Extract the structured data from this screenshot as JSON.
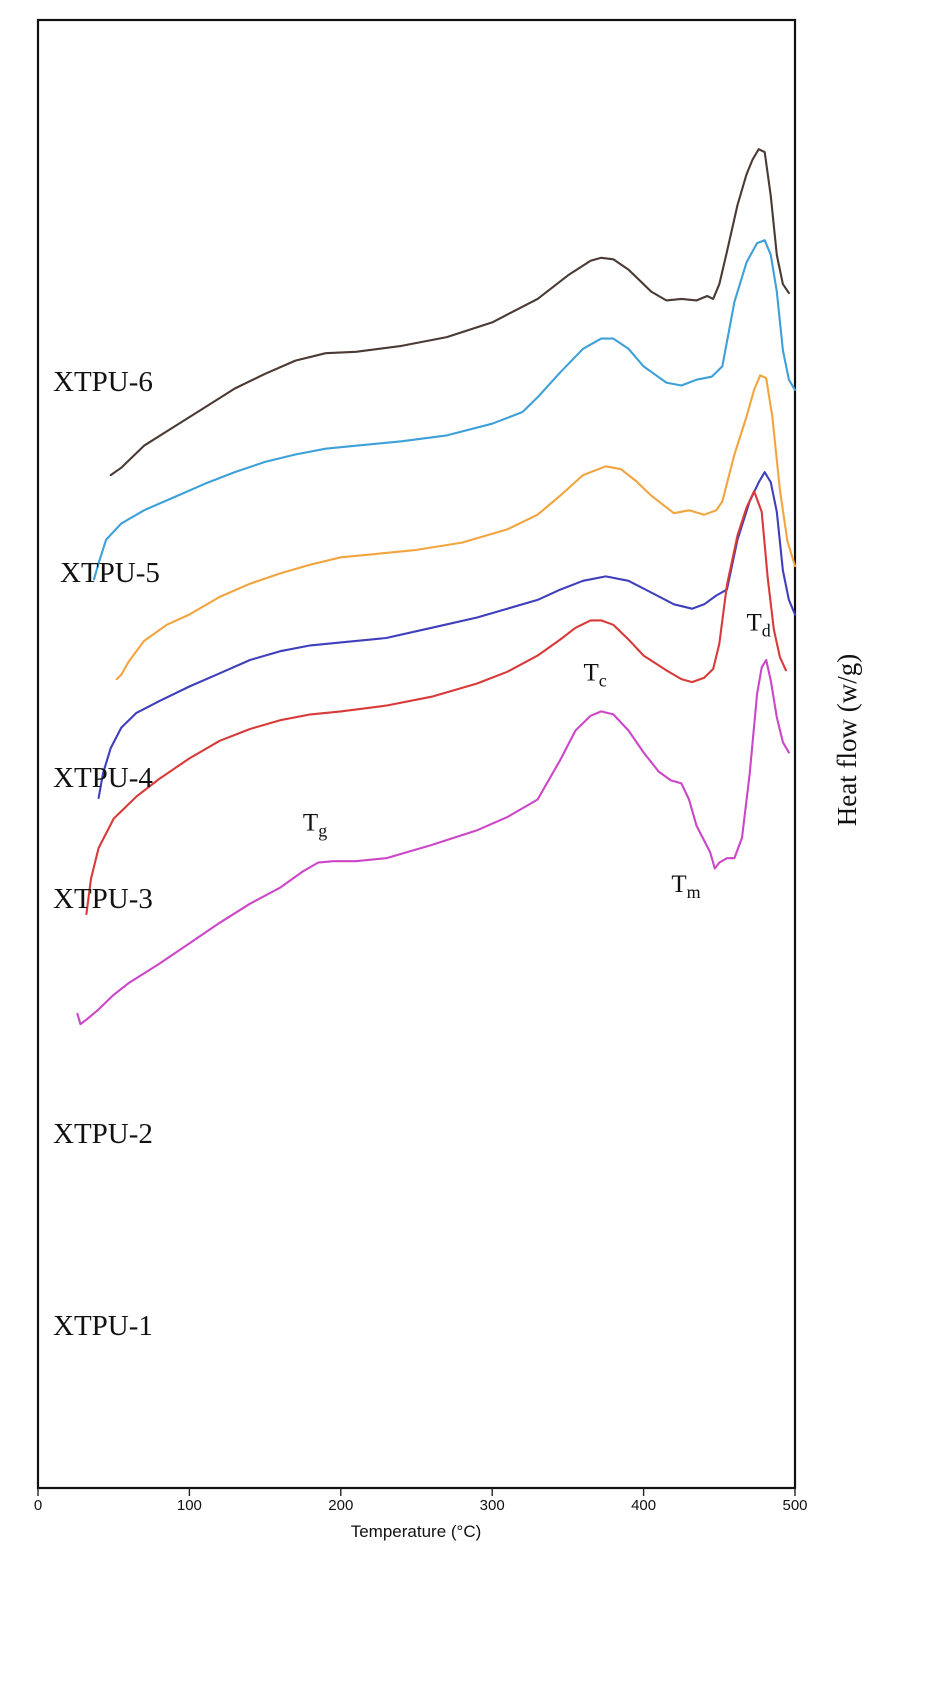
{
  "chart_data": {
    "type": "line",
    "title": "",
    "xlabel": "Temperature (°C)",
    "ylabel": "Heat flow (w/g)",
    "xlim": [
      0,
      500
    ],
    "ylim": [
      0,
      100
    ],
    "x_ticks": [
      0,
      100,
      200,
      300,
      400,
      500
    ],
    "grid": false,
    "series": [
      {
        "name": "XTPU-6",
        "color": "#4a3a33",
        "x": [
          48,
          55,
          70,
          90,
          110,
          130,
          150,
          170,
          190,
          210,
          240,
          270,
          300,
          330,
          350,
          365,
          372,
          380,
          390,
          405,
          415,
          425,
          435,
          442,
          446,
          450,
          455,
          462,
          468,
          472,
          476,
          480,
          484,
          488,
          492,
          496
        ],
        "y": [
          69.0,
          69.5,
          71.0,
          72.3,
          73.6,
          74.9,
          75.9,
          76.8,
          77.3,
          77.4,
          77.8,
          78.4,
          79.4,
          81.0,
          82.6,
          83.6,
          83.8,
          83.7,
          83.0,
          81.5,
          80.9,
          81.0,
          80.9,
          81.2,
          81.0,
          82.0,
          84.2,
          87.4,
          89.5,
          90.5,
          91.2,
          91.0,
          88.0,
          84.0,
          82.0,
          81.4
        ]
      },
      {
        "name": "XTPU-5",
        "color": "#3ea0d8",
        "x": [
          37,
          40,
          45,
          55,
          70,
          90,
          110,
          130,
          150,
          170,
          190,
          210,
          240,
          270,
          300,
          320,
          330,
          345,
          360,
          372,
          380,
          390,
          400,
          415,
          425,
          435,
          445,
          452,
          460,
          468,
          475,
          480,
          484,
          488,
          492,
          496,
          500
        ],
        "y": [
          61.9,
          63.0,
          64.6,
          65.7,
          66.6,
          67.5,
          68.4,
          69.2,
          69.9,
          70.4,
          70.8,
          71.0,
          71.3,
          71.7,
          72.5,
          73.3,
          74.3,
          76.0,
          77.6,
          78.3,
          78.3,
          77.6,
          76.4,
          75.3,
          75.1,
          75.5,
          75.7,
          76.4,
          80.8,
          83.5,
          84.8,
          85.0,
          84.0,
          81.5,
          77.5,
          75.5,
          74.8
        ]
      },
      {
        "name": "XTPU-4",
        "color": "#f2a43f",
        "x": [
          52,
          55,
          60,
          70,
          85,
          100,
          120,
          140,
          160,
          180,
          200,
          220,
          250,
          280,
          310,
          330,
          345,
          360,
          375,
          385,
          395,
          405,
          420,
          430,
          440,
          448,
          452,
          460,
          468,
          473,
          477,
          481,
          485,
          490,
          495,
          500
        ],
        "y": [
          55.1,
          55.4,
          56.3,
          57.7,
          58.8,
          59.5,
          60.7,
          61.6,
          62.3,
          62.9,
          63.4,
          63.6,
          63.9,
          64.4,
          65.3,
          66.3,
          67.6,
          69.0,
          69.6,
          69.4,
          68.6,
          67.6,
          66.4,
          66.6,
          66.3,
          66.6,
          67.2,
          70.4,
          73.0,
          74.8,
          75.8,
          75.6,
          73.0,
          68.0,
          64.5,
          62.8
        ]
      },
      {
        "name": "XTPU-3",
        "color": "#3f3fbc",
        "x": [
          40,
          43,
          48,
          55,
          65,
          80,
          100,
          120,
          140,
          160,
          180,
          200,
          230,
          260,
          290,
          310,
          330,
          345,
          360,
          375,
          390,
          405,
          420,
          432,
          440,
          448,
          455,
          462,
          470,
          476,
          480,
          484,
          488,
          492,
          496,
          500
        ],
        "y": [
          47.0,
          48.7,
          50.4,
          51.8,
          52.8,
          53.6,
          54.6,
          55.5,
          56.4,
          57.0,
          57.4,
          57.6,
          57.9,
          58.6,
          59.3,
          59.9,
          60.5,
          61.2,
          61.8,
          62.1,
          61.8,
          61.0,
          60.2,
          59.9,
          60.2,
          60.8,
          61.2,
          64.6,
          67.2,
          68.5,
          69.2,
          68.5,
          66.5,
          62.5,
          60.5,
          59.5
        ]
      },
      {
        "name": "XTPU-2",
        "color": "#d83a3a",
        "x": [
          32,
          35,
          40,
          50,
          65,
          80,
          100,
          120,
          140,
          160,
          180,
          200,
          230,
          260,
          290,
          310,
          330,
          345,
          355,
          365,
          372,
          380,
          390,
          400,
          415,
          425,
          432,
          440,
          446,
          450,
          455,
          462,
          468,
          473,
          478,
          482,
          486,
          490,
          494
        ],
        "y": [
          39.1,
          41.5,
          43.6,
          45.6,
          47.1,
          48.3,
          49.7,
          50.9,
          51.7,
          52.3,
          52.7,
          52.9,
          53.3,
          53.9,
          54.8,
          55.6,
          56.7,
          57.8,
          58.6,
          59.1,
          59.1,
          58.8,
          57.8,
          56.7,
          55.7,
          55.1,
          54.9,
          55.2,
          55.8,
          57.5,
          61.5,
          64.9,
          66.8,
          67.9,
          66.5,
          62.0,
          58.5,
          56.6,
          55.7
        ]
      },
      {
        "name": "XTPU-1",
        "color": "#cc46c8",
        "x": [
          26,
          28,
          32,
          40,
          50,
          60,
          80,
          100,
          120,
          140,
          160,
          175,
          185,
          195,
          210,
          230,
          260,
          290,
          310,
          330,
          345,
          355,
          365,
          372,
          380,
          390,
          400,
          410,
          418,
          425,
          430,
          435,
          440,
          444,
          447,
          450,
          455,
          460,
          465,
          470,
          475,
          478,
          481,
          484,
          488,
          492,
          496
        ],
        "y": [
          32.3,
          31.6,
          31.9,
          32.6,
          33.6,
          34.4,
          35.7,
          37.1,
          38.5,
          39.8,
          40.9,
          42.0,
          42.6,
          42.7,
          42.7,
          42.9,
          43.8,
          44.8,
          45.7,
          46.9,
          49.6,
          51.6,
          52.6,
          52.9,
          52.7,
          51.6,
          50.1,
          48.8,
          48.2,
          48.0,
          46.9,
          45.1,
          44.1,
          43.3,
          42.2,
          42.6,
          42.9,
          42.9,
          44.3,
          48.6,
          54.1,
          55.9,
          56.4,
          55.0,
          52.5,
          50.8,
          50.1
        ]
      }
    ],
    "series_labels": [
      "XTPU-6",
      "XTPU-5",
      "XTPU-4",
      "XTPU-3",
      "XTPU-2",
      "XTPU-1"
    ],
    "annotations": [
      {
        "main": "T",
        "sub": "g",
        "x": 183,
        "y": 44.8
      },
      {
        "main": "T",
        "sub": "c",
        "x": 368,
        "y": 55.0
      },
      {
        "main": "T",
        "sub": "m",
        "x": 428,
        "y": 40.6
      },
      {
        "main": "T",
        "sub": "d",
        "x": 476,
        "y": 58.4
      }
    ]
  }
}
